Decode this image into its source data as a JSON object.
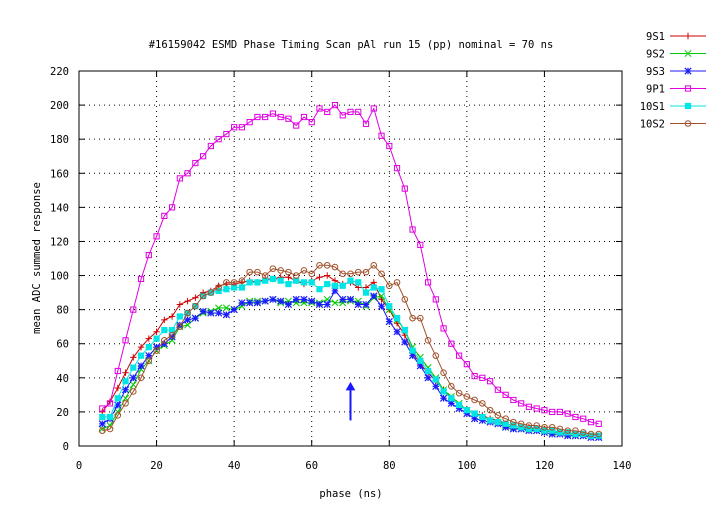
{
  "chart_data": {
    "type": "line",
    "title": "#16159042 ESMD Phase Timing Scan pAl run 15 (pp) nominal = 70 ns",
    "xlabel": "phase (ns)",
    "ylabel": "mean ADC summed response",
    "xlim": [
      0,
      140
    ],
    "ylim": [
      0,
      220
    ],
    "xticks": [
      0,
      20,
      40,
      60,
      80,
      100,
      120,
      140
    ],
    "yticks": [
      0,
      20,
      40,
      60,
      80,
      100,
      120,
      140,
      160,
      180,
      200,
      220
    ],
    "grid": true,
    "legend_position": "outside-right",
    "annotation": {
      "type": "arrow",
      "x": 70,
      "y_from": 15,
      "y_to": 37,
      "color": "#1a1aff"
    },
    "series": [
      {
        "name": "9S1",
        "color": "#cc0000",
        "marker": "plus",
        "x": [
          6,
          8,
          10,
          12,
          14,
          16,
          18,
          20,
          22,
          24,
          26,
          28,
          30,
          32,
          34,
          36,
          38,
          40,
          42,
          44,
          46,
          48,
          50,
          52,
          54,
          56,
          58,
          60,
          62,
          64,
          66,
          68,
          70,
          72,
          74,
          76,
          78,
          80,
          82,
          84,
          86,
          88,
          90,
          92,
          94,
          96,
          98,
          100,
          102,
          104,
          106,
          108,
          110,
          112,
          114,
          116,
          118,
          120,
          122,
          124,
          126,
          128,
          130,
          132,
          134
        ],
        "y": [
          20,
          26,
          34,
          43,
          52,
          58,
          63,
          67,
          74,
          76,
          83,
          85,
          87,
          90,
          91,
          94,
          95,
          95,
          96,
          97,
          96,
          98,
          98,
          99,
          99,
          97,
          95,
          97,
          99,
          100,
          97,
          95,
          96,
          93,
          93,
          96,
          86,
          80,
          72,
          65,
          55,
          48,
          43,
          38,
          33,
          28,
          24,
          21,
          19,
          18,
          16,
          15,
          13,
          12,
          11,
          11,
          10,
          10,
          9,
          8,
          8,
          7,
          7,
          6,
          6
        ]
      },
      {
        "name": "9S2",
        "color": "#00cc00",
        "marker": "cross",
        "x": [
          6,
          8,
          10,
          12,
          14,
          16,
          18,
          20,
          22,
          24,
          26,
          28,
          30,
          32,
          34,
          36,
          38,
          40,
          42,
          44,
          46,
          48,
          50,
          52,
          54,
          56,
          58,
          60,
          62,
          64,
          66,
          68,
          70,
          72,
          74,
          76,
          78,
          80,
          82,
          84,
          86,
          88,
          90,
          92,
          94,
          96,
          98,
          100,
          102,
          104,
          106,
          108,
          110,
          112,
          114,
          116,
          118,
          120,
          122,
          124,
          126,
          128,
          130,
          132,
          134
        ],
        "y": [
          10,
          12,
          20,
          28,
          36,
          45,
          50,
          56,
          59,
          62,
          70,
          71,
          75,
          78,
          79,
          81,
          81,
          80,
          82,
          85,
          85,
          85,
          86,
          84,
          85,
          84,
          84,
          84,
          84,
          86,
          84,
          84,
          85,
          85,
          82,
          87,
          88,
          80,
          74,
          68,
          58,
          52,
          46,
          40,
          33,
          29,
          25,
          21,
          19,
          17,
          15,
          14,
          12,
          11,
          10,
          10,
          9,
          9,
          8,
          8,
          7,
          7,
          6,
          6,
          6
        ]
      },
      {
        "name": "9S3",
        "color": "#1a1aff",
        "marker": "star",
        "x": [
          6,
          8,
          10,
          12,
          14,
          16,
          18,
          20,
          22,
          24,
          26,
          28,
          30,
          32,
          34,
          36,
          38,
          40,
          42,
          44,
          46,
          48,
          50,
          52,
          54,
          56,
          58,
          60,
          62,
          64,
          66,
          68,
          70,
          72,
          74,
          76,
          78,
          80,
          82,
          84,
          86,
          88,
          90,
          92,
          94,
          96,
          98,
          100,
          102,
          104,
          106,
          108,
          110,
          112,
          114,
          116,
          118,
          120,
          122,
          124,
          126,
          128,
          130,
          132,
          134
        ],
        "y": [
          13,
          16,
          24,
          33,
          40,
          47,
          53,
          58,
          60,
          64,
          71,
          74,
          75,
          79,
          78,
          78,
          77,
          80,
          84,
          84,
          84,
          85,
          86,
          85,
          83,
          86,
          86,
          85,
          83,
          83,
          91,
          86,
          86,
          83,
          83,
          88,
          82,
          73,
          67,
          61,
          53,
          47,
          40,
          35,
          28,
          25,
          22,
          19,
          16,
          15,
          14,
          13,
          11,
          10,
          10,
          9,
          9,
          8,
          7,
          7,
          6,
          6,
          6,
          5,
          5
        ]
      },
      {
        "name": "9P1",
        "color": "#e000e0",
        "marker": "square",
        "x": [
          6,
          8,
          10,
          12,
          14,
          16,
          18,
          20,
          22,
          24,
          26,
          28,
          30,
          32,
          34,
          36,
          38,
          40,
          42,
          44,
          46,
          48,
          50,
          52,
          54,
          56,
          58,
          60,
          62,
          64,
          66,
          68,
          70,
          72,
          74,
          76,
          78,
          80,
          82,
          84,
          86,
          88,
          90,
          92,
          94,
          96,
          98,
          100,
          102,
          104,
          106,
          108,
          110,
          112,
          114,
          116,
          118,
          120,
          122,
          124,
          126,
          128,
          130,
          132,
          134
        ],
        "y": [
          22,
          25,
          44,
          62,
          80,
          98,
          112,
          123,
          135,
          140,
          157,
          160,
          166,
          170,
          176,
          180,
          183,
          187,
          187,
          190,
          193,
          193,
          195,
          193,
          192,
          188,
          193,
          190,
          198,
          196,
          200,
          194,
          196,
          196,
          189,
          198,
          182,
          176,
          163,
          151,
          127,
          118,
          96,
          86,
          69,
          60,
          53,
          48,
          41,
          40,
          38,
          33,
          30,
          27,
          25,
          23,
          22,
          21,
          20,
          20,
          19,
          17,
          16,
          14,
          13
        ]
      },
      {
        "name": "10S1",
        "color": "#00e5e5",
        "marker": "filled-square",
        "x": [
          6,
          8,
          10,
          12,
          14,
          16,
          18,
          20,
          22,
          24,
          26,
          28,
          30,
          32,
          34,
          36,
          38,
          40,
          42,
          44,
          46,
          48,
          50,
          52,
          54,
          56,
          58,
          60,
          62,
          64,
          66,
          68,
          70,
          72,
          74,
          76,
          78,
          80,
          82,
          84,
          86,
          88,
          90,
          92,
          94,
          96,
          98,
          100,
          102,
          104,
          106,
          108,
          110,
          112,
          114,
          116,
          118,
          120,
          122,
          124,
          126,
          128,
          130,
          132,
          134
        ],
        "y": [
          17,
          17,
          28,
          38,
          46,
          53,
          58,
          63,
          68,
          68,
          76,
          78,
          82,
          88,
          90,
          91,
          92,
          93,
          93,
          96,
          96,
          97,
          98,
          97,
          95,
          97,
          96,
          96,
          92,
          95,
          94,
          94,
          97,
          96,
          90,
          93,
          92,
          82,
          75,
          68,
          56,
          50,
          44,
          39,
          32,
          28,
          24,
          21,
          19,
          17,
          15,
          14,
          13,
          12,
          11,
          10,
          10,
          9,
          9,
          8,
          8,
          7,
          7,
          6,
          6
        ]
      },
      {
        "name": "10S2",
        "color": "#a0522d",
        "marker": "circle",
        "x": [
          6,
          8,
          10,
          12,
          14,
          16,
          18,
          20,
          22,
          24,
          26,
          28,
          30,
          32,
          34,
          36,
          38,
          40,
          42,
          44,
          46,
          48,
          50,
          52,
          54,
          56,
          58,
          60,
          62,
          64,
          66,
          68,
          70,
          72,
          74,
          76,
          78,
          80,
          82,
          84,
          86,
          88,
          90,
          92,
          94,
          96,
          98,
          100,
          102,
          104,
          106,
          108,
          110,
          112,
          114,
          116,
          118,
          120,
          122,
          124,
          126,
          128,
          130,
          132,
          134
        ],
        "y": [
          9,
          10,
          18,
          25,
          32,
          40,
          50,
          56,
          62,
          65,
          70,
          78,
          82,
          88,
          90,
          93,
          96,
          96,
          97,
          102,
          102,
          100,
          104,
          103,
          102,
          100,
          103,
          101,
          106,
          106,
          105,
          101,
          101,
          102,
          102,
          106,
          101,
          94,
          96,
          86,
          75,
          75,
          62,
          53,
          43,
          35,
          31,
          29,
          27,
          25,
          21,
          18,
          16,
          14,
          13,
          12,
          12,
          11,
          11,
          10,
          9,
          9,
          8,
          7,
          7
        ]
      }
    ]
  }
}
